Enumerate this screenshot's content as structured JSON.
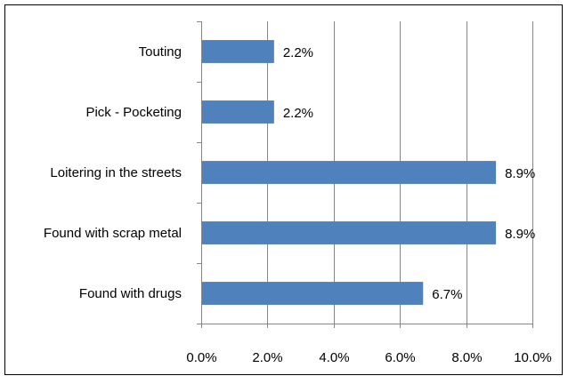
{
  "chart_data": {
    "type": "bar",
    "orientation": "horizontal",
    "categories": [
      "Touting",
      "Pick - Pocketing",
      "Loitering in the streets",
      "Found with scrap metal",
      "Found with drugs"
    ],
    "values": [
      2.2,
      2.2,
      8.9,
      8.9,
      6.7
    ],
    "value_labels": [
      "2.2%",
      "2.2%",
      "8.9%",
      "8.9%",
      "6.7%"
    ],
    "x_ticks": [
      "0.0%",
      "2.0%",
      "4.0%",
      "6.0%",
      "8.0%",
      "10.0%"
    ],
    "xlim": [
      0,
      10
    ],
    "title": "",
    "xlabel": "",
    "ylabel": "",
    "grid": "vertical",
    "legend": "none",
    "bar_color": "#4F81BD",
    "grid_color": "#868686",
    "axis_color": "#868686",
    "border_color": "#000000"
  }
}
